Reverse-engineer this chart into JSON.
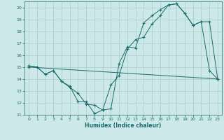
{
  "xlabel": "Humidex (Indice chaleur)",
  "bg_color": "#cce8e8",
  "grid_color": "#aacccc",
  "line_color": "#1a6b6b",
  "xlim": [
    -0.5,
    23.5
  ],
  "ylim": [
    11,
    20.5
  ],
  "xticks": [
    0,
    1,
    2,
    3,
    4,
    5,
    6,
    7,
    8,
    9,
    10,
    11,
    12,
    13,
    14,
    15,
    16,
    17,
    18,
    19,
    20,
    21,
    22,
    23
  ],
  "yticks": [
    11,
    12,
    13,
    14,
    15,
    16,
    17,
    18,
    19,
    20
  ],
  "line1": {
    "x": [
      0,
      1,
      2,
      3,
      4,
      5,
      6,
      7,
      8,
      9,
      10,
      11,
      12,
      13,
      14,
      15,
      16,
      17,
      18,
      19,
      20,
      21,
      22,
      23
    ],
    "y": [
      15.1,
      15.0,
      14.4,
      14.7,
      13.8,
      13.3,
      12.8,
      11.9,
      11.8,
      11.4,
      11.5,
      15.3,
      16.7,
      16.6,
      18.7,
      19.3,
      19.8,
      20.2,
      20.3,
      19.5,
      18.5,
      18.8,
      14.7,
      14.0
    ]
  },
  "line2": {
    "x": [
      0,
      1,
      2,
      3,
      4,
      5,
      6,
      7,
      8,
      9,
      10,
      11,
      12,
      13,
      14,
      15,
      16,
      17,
      18,
      19,
      20,
      21,
      22,
      23
    ],
    "y": [
      15.1,
      15.0,
      14.4,
      14.7,
      13.8,
      13.4,
      12.1,
      12.1,
      11.1,
      11.4,
      13.5,
      14.3,
      16.5,
      17.3,
      17.5,
      18.6,
      19.3,
      20.2,
      20.3,
      19.5,
      18.5,
      18.8,
      18.8,
      14.0
    ]
  },
  "line3": {
    "x": [
      0,
      23
    ],
    "y": [
      15.0,
      14.0
    ]
  }
}
